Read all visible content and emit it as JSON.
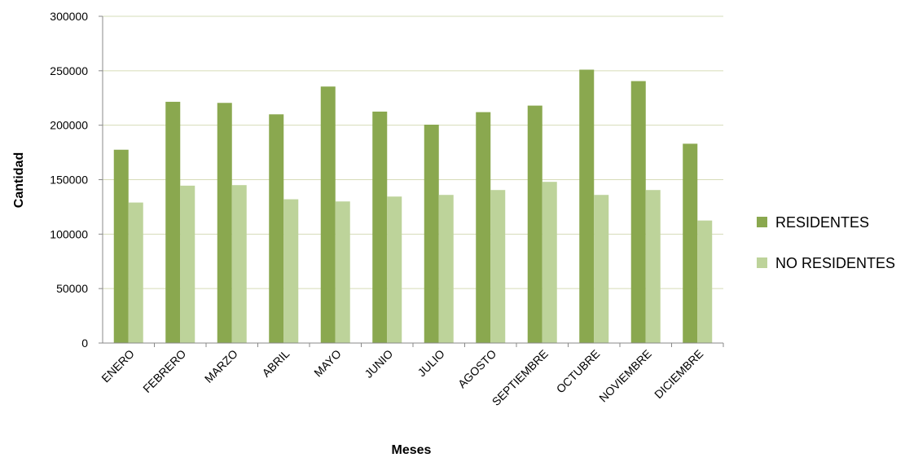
{
  "chart_data": {
    "type": "bar",
    "title": "",
    "xlabel": "Meses",
    "ylabel": "Cantidad",
    "ylim": [
      0,
      300000
    ],
    "yticks": [
      0,
      50000,
      100000,
      150000,
      200000,
      250000,
      300000
    ],
    "grid": true,
    "legend_position": "right",
    "categories": [
      "ENERO",
      "FEBRERO",
      "MARZO",
      "ABRIL",
      "MAYO",
      "JUNIO",
      "JULIO",
      "AGOSTO",
      "SEPTIEMBRE",
      "OCTUBRE",
      "NOVIEMBRE",
      "DICIEMBRE"
    ],
    "series": [
      {
        "name": "RESIDENTES",
        "color": "#8aa84f",
        "values": [
          177500,
          221500,
          220500,
          210000,
          235500,
          212500,
          200500,
          212000,
          218000,
          251000,
          240500,
          183000
        ]
      },
      {
        "name": "NO RESIDENTES",
        "color": "#bdd39a",
        "values": [
          129000,
          144500,
          145000,
          132000,
          130000,
          134500,
          136000,
          140500,
          148000,
          136000,
          140500,
          112500
        ]
      }
    ]
  }
}
